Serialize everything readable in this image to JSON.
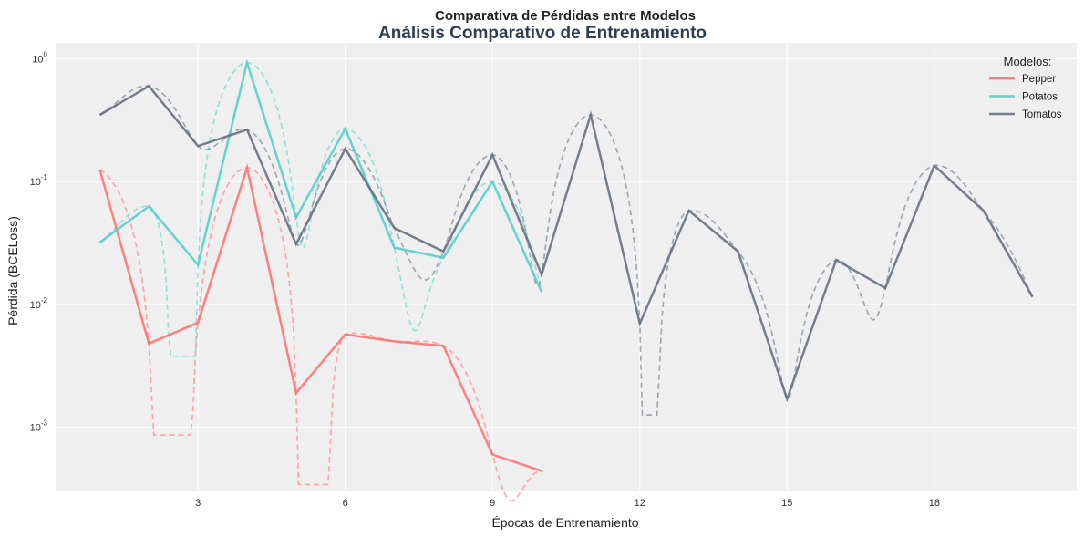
{
  "chart_data": {
    "type": "line",
    "title": "Comparativa de Pérdidas entre Modelos",
    "subtitle": "Análisis Comparativo de Entrenamiento",
    "xlabel": "Épocas de Entrenamiento",
    "ylabel": "Pérdida (BCELoss)",
    "x_ticks": [
      3,
      6,
      9,
      12,
      15,
      18
    ],
    "xlim": [
      0.1,
      20.9
    ],
    "yscale": "log",
    "ylim": [
      0.0003,
      1.35
    ],
    "y_ticks": [
      0.001,
      0.01,
      0.1,
      1
    ],
    "y_tick_labels": [
      {
        "base": "10",
        "exp": "-3"
      },
      {
        "base": "10",
        "exp": "-2"
      },
      {
        "base": "10",
        "exp": "-1"
      },
      {
        "base": "10",
        "exp": "0"
      }
    ],
    "grid": true,
    "legend": {
      "title": "Modelos:",
      "position": "top-right"
    },
    "smoothed_dashed": true,
    "series": [
      {
        "name": "Pepper",
        "color": "#ff6b6b",
        "x": [
          1,
          2,
          3,
          4,
          5,
          6,
          7,
          8,
          9,
          10
        ],
        "values": [
          0.125,
          0.0048,
          0.0071,
          0.13,
          0.0019,
          0.0057,
          0.005,
          0.0046,
          0.0006,
          0.00044
        ]
      },
      {
        "name": "Potatos",
        "color": "#4ecdc4",
        "x": [
          1,
          2,
          3,
          4,
          5,
          6,
          7,
          8,
          9,
          10
        ],
        "values": [
          0.032,
          0.063,
          0.021,
          0.93,
          0.051,
          0.27,
          0.029,
          0.024,
          0.1,
          0.0126
        ]
      },
      {
        "name": "Tomatos",
        "color": "#5f6b7a",
        "x": [
          1,
          2,
          3,
          4,
          5,
          6,
          7,
          8,
          9,
          10,
          11,
          12,
          13,
          14,
          15,
          16,
          17,
          18,
          19,
          20
        ],
        "values": [
          0.35,
          0.6,
          0.195,
          0.265,
          0.031,
          0.185,
          0.042,
          0.027,
          0.165,
          0.0175,
          0.35,
          0.007,
          0.058,
          0.027,
          0.0017,
          0.023,
          0.0136,
          0.135,
          0.058,
          0.0115
        ]
      }
    ]
  }
}
